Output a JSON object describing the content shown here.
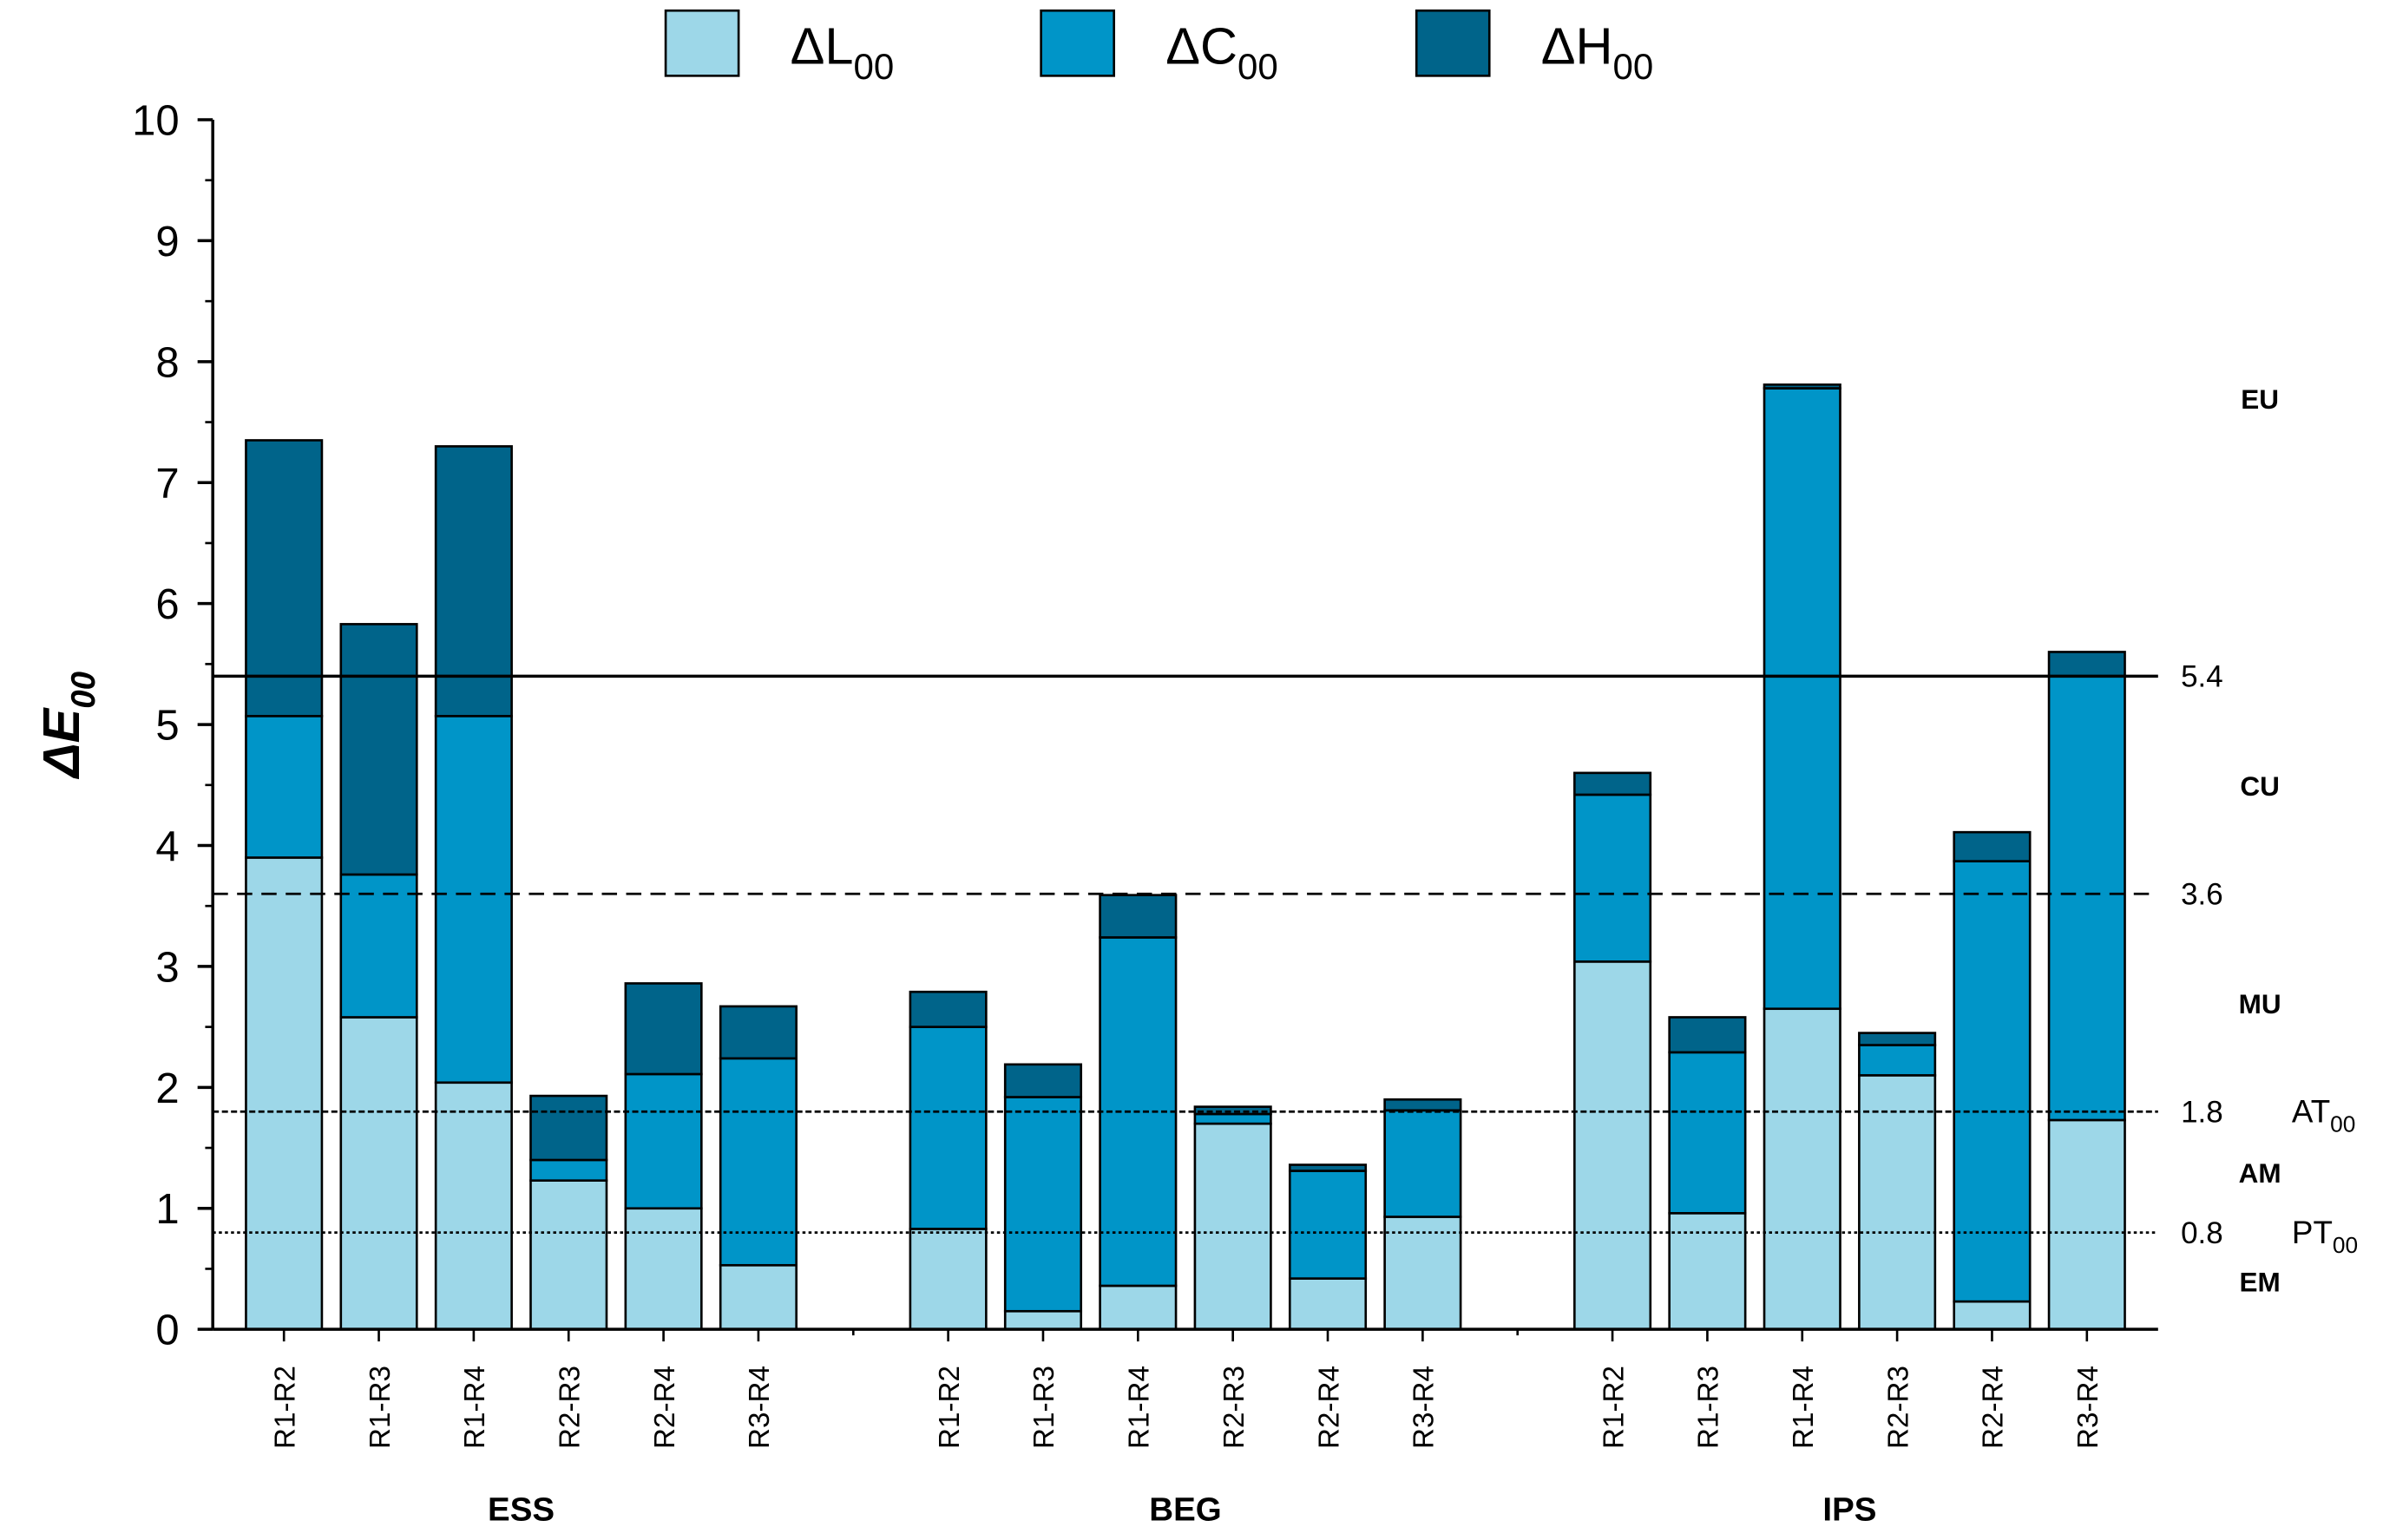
{
  "chart_data": {
    "type": "stacked-bar",
    "y_label": {
      "main": "ΔE",
      "sub": "00"
    },
    "groups": [
      "ESS",
      "BEG",
      "IPS"
    ],
    "categories": [
      "R1-R2",
      "R1-R3",
      "R1-R4",
      "R2-R3",
      "R2-R4",
      "R3-R4",
      "R1-R2",
      "R1-R3",
      "R1-R4",
      "R2-R3",
      "R2-R4",
      "R3-R4",
      "R1-R2",
      "R1-R3",
      "R1-R4",
      "R2-R3",
      "R2-R4",
      "R3-R4"
    ],
    "series": [
      {
        "name": "ΔL",
        "sub": "00",
        "color": "#9dd7e8",
        "values": [
          3.9,
          2.58,
          2.04,
          1.23,
          1.0,
          0.53,
          0.83,
          0.15,
          0.36,
          1.7,
          0.42,
          0.93,
          3.04,
          0.96,
          2.65,
          2.1,
          0.23,
          1.73
        ]
      },
      {
        "name": "ΔC",
        "sub": "00",
        "color": "#0095c8",
        "values": [
          1.17,
          1.18,
          3.03,
          0.17,
          1.11,
          1.71,
          1.67,
          1.77,
          2.88,
          0.08,
          0.89,
          0.88,
          1.38,
          1.33,
          5.13,
          0.25,
          3.64,
          3.67
        ]
      },
      {
        "name": "ΔH",
        "sub": "00",
        "color": "#00648a",
        "values": [
          2.28,
          2.07,
          2.23,
          0.53,
          0.75,
          0.43,
          0.29,
          0.27,
          0.35,
          0.06,
          0.05,
          0.09,
          0.18,
          0.29,
          0.03,
          0.1,
          0.24,
          0.2
        ]
      }
    ],
    "ylim": [
      0,
      10
    ],
    "yticks": [
      0,
      1,
      2,
      3,
      4,
      5,
      6,
      7,
      8,
      9,
      10
    ],
    "ref_lines": [
      {
        "value": 5.4,
        "style": "solid"
      },
      {
        "value": 3.6,
        "style": "dashed"
      },
      {
        "value": 1.8,
        "style": "short-dashed",
        "label": {
          "main": "AT",
          "sub": "00"
        }
      },
      {
        "value": 0.8,
        "style": "dotted",
        "label": {
          "main": "PT",
          "sub": "00"
        }
      }
    ],
    "zones": [
      "EU",
      "CU",
      "MU",
      "AM",
      "EM"
    ]
  }
}
